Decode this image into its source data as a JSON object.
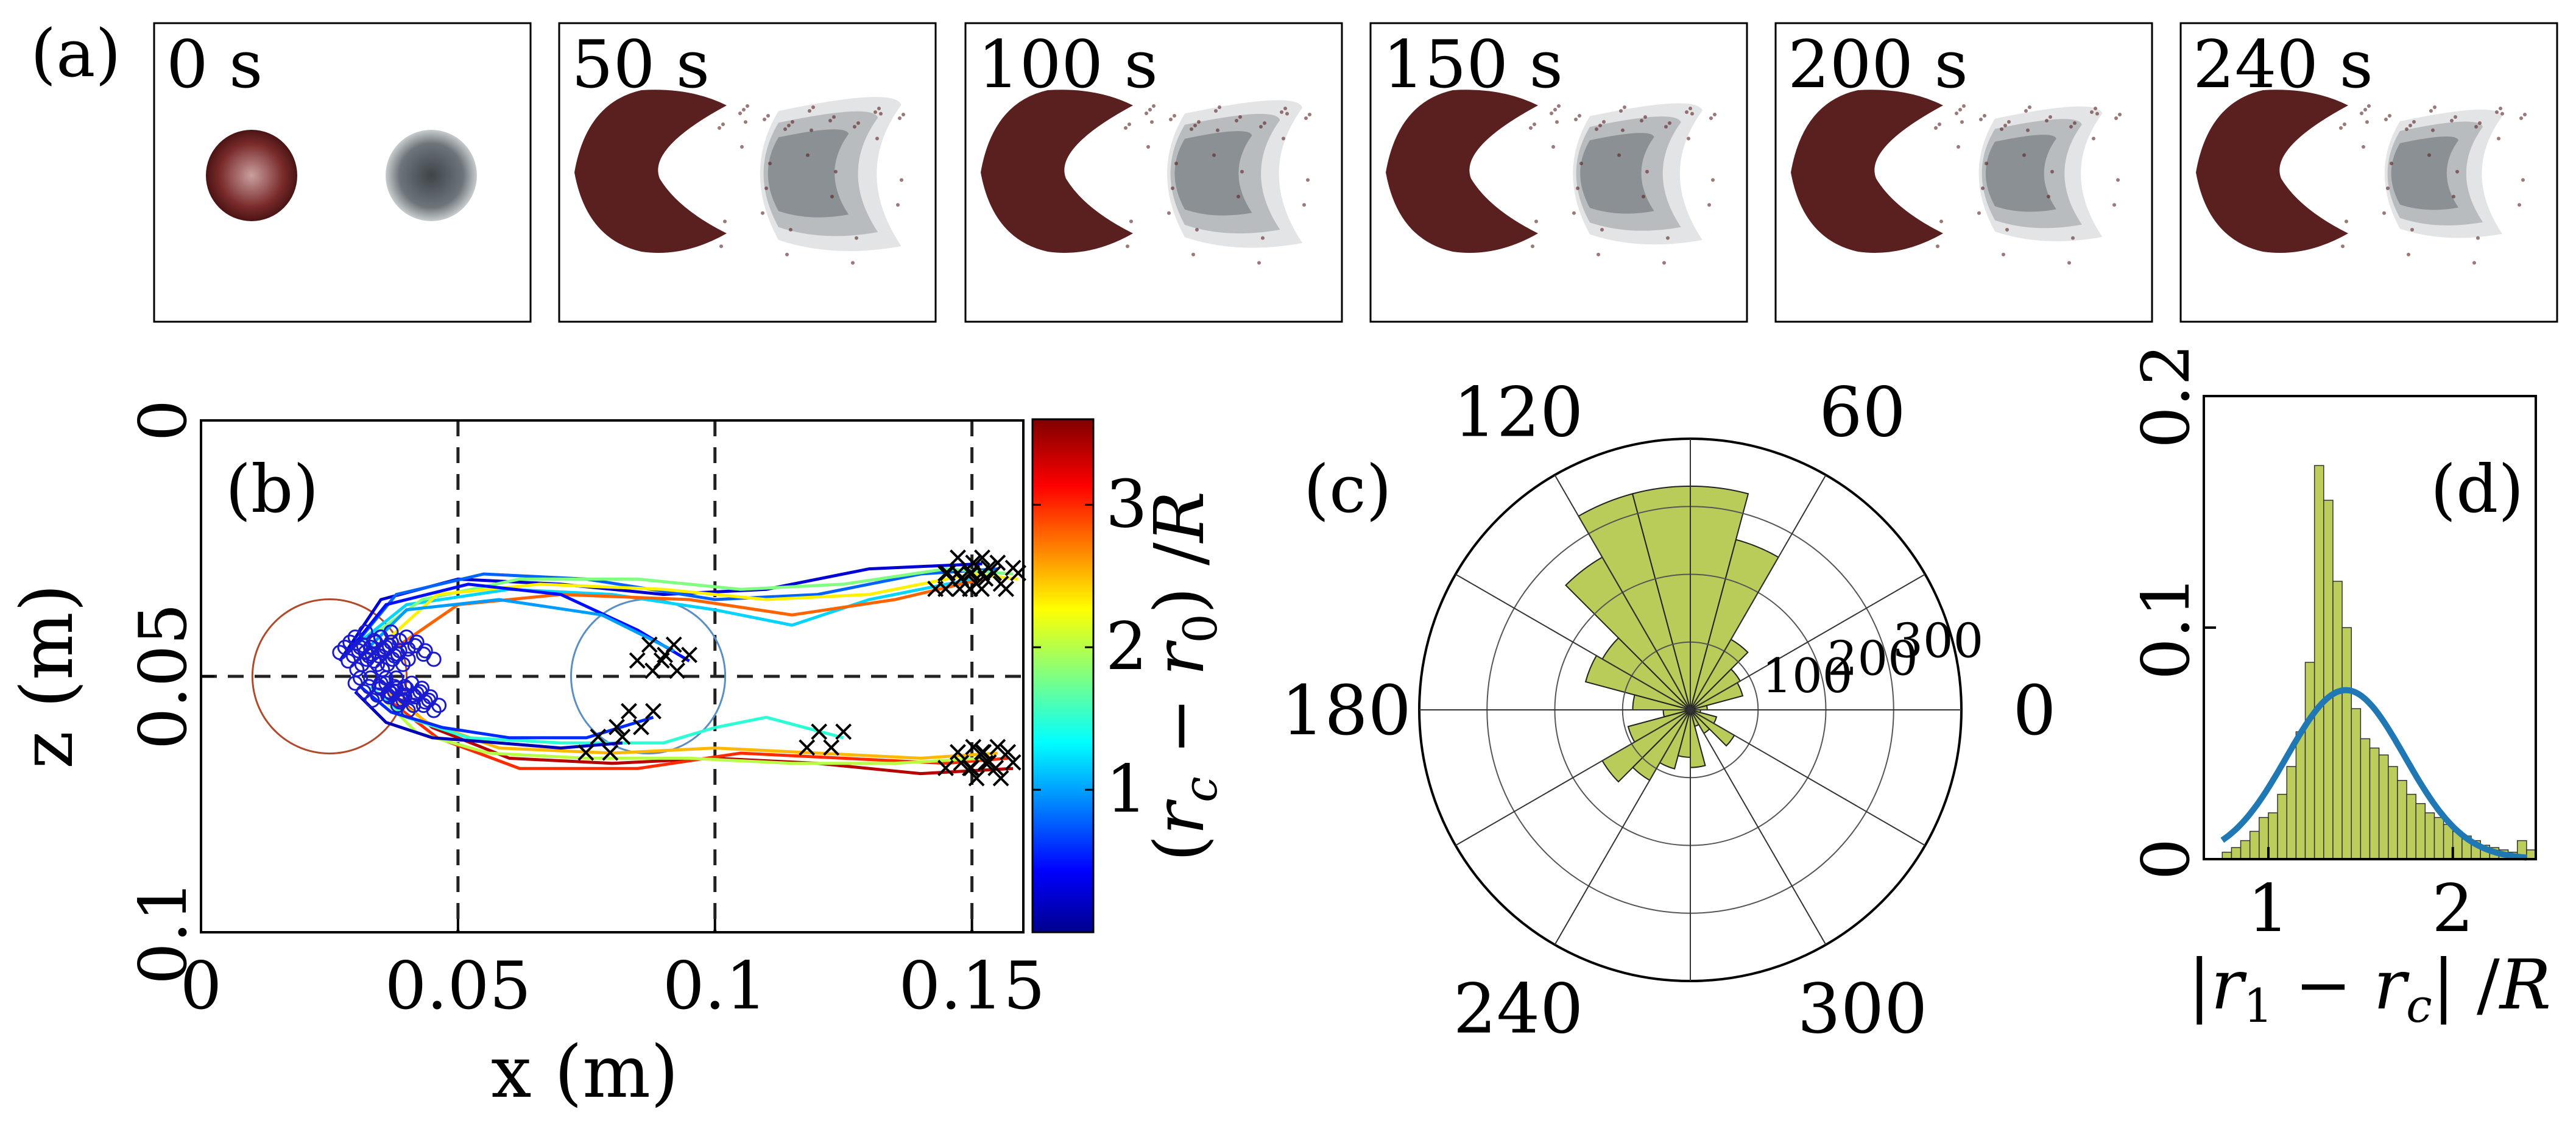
{
  "figure": {
    "panel_labels": {
      "a": "(a)",
      "b": "(b)",
      "c": "(c)",
      "d": "(d)"
    }
  },
  "panel_a": {
    "frames": [
      {
        "time": "0 s",
        "state": "initial"
      },
      {
        "time": "50 s",
        "state": "deformed"
      },
      {
        "time": "100 s",
        "state": "deformed"
      },
      {
        "time": "150 s",
        "state": "deformed"
      },
      {
        "time": "200 s",
        "state": "deformed"
      },
      {
        "time": "240 s",
        "state": "deformed"
      }
    ],
    "colors": {
      "front_blob": "#5a1f1f",
      "rear_blob": "#6d7277"
    }
  },
  "chart_data": [
    {
      "id": "b",
      "type": "line",
      "xlabel": "x (m)",
      "ylabel": "z (m)",
      "xlim": [
        0,
        0.16
      ],
      "ylim": [
        0,
        0.1
      ],
      "y_inverted": true,
      "xticks": [
        0,
        0.05,
        0.1,
        0.15
      ],
      "xtick_labels": [
        "0",
        "0.05",
        "0.1",
        "0.15"
      ],
      "yticks": [
        0,
        0.05,
        0.1
      ],
      "ytick_labels": [
        "0",
        "0.05",
        "0.1"
      ],
      "dashed_lines": {
        "x": [
          0.05,
          0.1,
          0.15
        ],
        "z": [
          0.05
        ]
      },
      "circles": [
        {
          "cx": 0.025,
          "cz": 0.05,
          "r": 0.015,
          "color": "#b04a2a"
        },
        {
          "cx": 0.087,
          "cz": 0.05,
          "r": 0.015,
          "color": "#5a8fc4"
        }
      ],
      "upper_trajectories": [
        {
          "color_value": 0.3,
          "points": [
            [
              0.027,
              0.047
            ],
            [
              0.035,
              0.035
            ],
            [
              0.05,
              0.031
            ],
            [
              0.07,
              0.032
            ],
            [
              0.09,
              0.034
            ],
            [
              0.11,
              0.033
            ],
            [
              0.13,
              0.029
            ],
            [
              0.152,
              0.028
            ]
          ]
        },
        {
          "color_value": 0.8,
          "points": [
            [
              0.029,
              0.045
            ],
            [
              0.038,
              0.034
            ],
            [
              0.055,
              0.03
            ],
            [
              0.075,
              0.031
            ],
            [
              0.1,
              0.035
            ],
            [
              0.12,
              0.034
            ],
            [
              0.14,
              0.03
            ],
            [
              0.155,
              0.029
            ]
          ]
        },
        {
          "color_value": 1.2,
          "points": [
            [
              0.03,
              0.044
            ],
            [
              0.04,
              0.036
            ],
            [
              0.06,
              0.033
            ],
            [
              0.08,
              0.034
            ],
            [
              0.1,
              0.037
            ],
            [
              0.115,
              0.04
            ],
            [
              0.13,
              0.035
            ],
            [
              0.15,
              0.031
            ]
          ]
        },
        {
          "color_value": 1.8,
          "points": [
            [
              0.032,
              0.043
            ],
            [
              0.043,
              0.035
            ],
            [
              0.062,
              0.031
            ],
            [
              0.085,
              0.031
            ],
            [
              0.105,
              0.033
            ],
            [
              0.125,
              0.032
            ],
            [
              0.145,
              0.029
            ],
            [
              0.158,
              0.03
            ]
          ]
        },
        {
          "color_value": 2.3,
          "points": [
            [
              0.035,
              0.044
            ],
            [
              0.046,
              0.034
            ],
            [
              0.066,
              0.032
            ],
            [
              0.09,
              0.033
            ],
            [
              0.11,
              0.035
            ],
            [
              0.13,
              0.034
            ],
            [
              0.15,
              0.03
            ],
            [
              0.159,
              0.031
            ]
          ]
        },
        {
          "color_value": 2.8,
          "points": [
            [
              0.037,
              0.045
            ],
            [
              0.05,
              0.036
            ],
            [
              0.07,
              0.034
            ],
            [
              0.095,
              0.035
            ],
            [
              0.115,
              0.038
            ],
            [
              0.135,
              0.035
            ],
            [
              0.152,
              0.031
            ]
          ]
        },
        {
          "color_value": 0.5,
          "points": [
            [
              0.028,
              0.046
            ],
            [
              0.036,
              0.036
            ],
            [
              0.052,
              0.032
            ],
            [
              0.07,
              0.034
            ],
            [
              0.085,
              0.041
            ],
            [
              0.095,
              0.047
            ]
          ]
        },
        {
          "color_value": 1.0,
          "points": [
            [
              0.031,
              0.046
            ],
            [
              0.04,
              0.037
            ],
            [
              0.058,
              0.035
            ],
            [
              0.078,
              0.038
            ],
            [
              0.092,
              0.045
            ]
          ]
        }
      ],
      "lower_trajectories": [
        {
          "color_value": 3.4,
          "points": [
            [
              0.038,
              0.054
            ],
            [
              0.045,
              0.06
            ],
            [
              0.06,
              0.066
            ],
            [
              0.08,
              0.067
            ],
            [
              0.1,
              0.066
            ],
            [
              0.12,
              0.067
            ],
            [
              0.14,
              0.069
            ],
            [
              0.158,
              0.068
            ]
          ]
        },
        {
          "color_value": 3.0,
          "points": [
            [
              0.037,
              0.055
            ],
            [
              0.046,
              0.062
            ],
            [
              0.062,
              0.068
            ],
            [
              0.085,
              0.068
            ],
            [
              0.105,
              0.065
            ],
            [
              0.125,
              0.066
            ],
            [
              0.145,
              0.067
            ],
            [
              0.157,
              0.066
            ]
          ]
        },
        {
          "color_value": 2.5,
          "points": [
            [
              0.036,
              0.053
            ],
            [
              0.044,
              0.059
            ],
            [
              0.058,
              0.064
            ],
            [
              0.08,
              0.065
            ],
            [
              0.1,
              0.064
            ],
            [
              0.12,
              0.065
            ],
            [
              0.14,
              0.066
            ],
            [
              0.155,
              0.065
            ]
          ]
        },
        {
          "color_value": 2.0,
          "points": [
            [
              0.035,
              0.054
            ],
            [
              0.042,
              0.061
            ],
            [
              0.056,
              0.065
            ],
            [
              0.075,
              0.066
            ],
            [
              0.095,
              0.066
            ],
            [
              0.115,
              0.067
            ],
            [
              0.135,
              0.067
            ],
            [
              0.152,
              0.066
            ]
          ]
        },
        {
          "color_value": 1.5,
          "points": [
            [
              0.033,
              0.052
            ],
            [
              0.04,
              0.058
            ],
            [
              0.052,
              0.062
            ],
            [
              0.07,
              0.063
            ],
            [
              0.09,
              0.063
            ],
            [
              0.1,
              0.06
            ],
            [
              0.11,
              0.058
            ],
            [
              0.125,
              0.062
            ]
          ]
        },
        {
          "color_value": 0.6,
          "points": [
            [
              0.031,
              0.052
            ],
            [
              0.037,
              0.057
            ],
            [
              0.047,
              0.06
            ],
            [
              0.06,
              0.062
            ],
            [
              0.075,
              0.062
            ],
            [
              0.088,
              0.058
            ]
          ]
        },
        {
          "color_value": 0.2,
          "points": [
            [
              0.03,
              0.053
            ],
            [
              0.036,
              0.059
            ],
            [
              0.045,
              0.062
            ],
            [
              0.058,
              0.063
            ],
            [
              0.07,
              0.064
            ],
            [
              0.082,
              0.063
            ]
          ]
        }
      ],
      "start_markers": "o",
      "end_markers": "x",
      "colorbar": {
        "label": "(r_c − r_0)/R",
        "range": [
          0,
          3.6
        ],
        "ticks": [
          1,
          2,
          3
        ],
        "tick_labels": [
          "1",
          "2",
          "3"
        ],
        "colormap": "jet"
      }
    },
    {
      "id": "c",
      "type": "polar-histogram",
      "bin_width_deg": 15,
      "r_max": 400,
      "radial_ticks": [
        100,
        200,
        300
      ],
      "radial_tick_labels": [
        "100",
        "200",
        "300"
      ],
      "angle_labels": [
        {
          "deg": 0,
          "text": "0"
        },
        {
          "deg": 60,
          "text": "60"
        },
        {
          "deg": 120,
          "text": "120"
        },
        {
          "deg": 180,
          "text": "180"
        },
        {
          "deg": 240,
          "text": "240"
        },
        {
          "deg": 300,
          "text": "300"
        }
      ],
      "bins_deg": [
        0,
        15,
        30,
        45,
        60,
        75,
        90,
        105,
        120,
        135,
        150,
        165,
        180,
        195,
        210,
        225,
        240,
        255,
        270,
        285,
        300,
        315,
        330,
        345
      ],
      "counts": [
        25,
        80,
        85,
        120,
        260,
        330,
        330,
        330,
        260,
        150,
        160,
        85,
        40,
        95,
        150,
        120,
        90,
        70,
        85,
        25,
        40,
        75,
        40,
        15
      ],
      "color": "#b9cc5a"
    },
    {
      "id": "d",
      "type": "bar",
      "xlabel": "|r_1 − r_c|/R",
      "ylabel": "",
      "xlim": [
        0.65,
        2.45
      ],
      "ylim": [
        0,
        0.2
      ],
      "xticks": [
        1,
        2
      ],
      "xtick_labels": [
        "1",
        "2"
      ],
      "yticks": [
        0,
        0.1,
        0.2
      ],
      "ytick_labels": [
        "0",
        "0.1",
        "0.2"
      ],
      "bin_width": 0.05,
      "bin_centers": [
        0.775,
        0.825,
        0.875,
        0.925,
        0.975,
        1.025,
        1.075,
        1.125,
        1.175,
        1.225,
        1.275,
        1.325,
        1.375,
        1.425,
        1.475,
        1.525,
        1.575,
        1.625,
        1.675,
        1.725,
        1.775,
        1.825,
        1.875,
        1.925,
        1.975,
        2.025,
        2.075,
        2.125,
        2.175,
        2.225,
        2.275,
        2.325,
        2.375,
        2.425
      ],
      "values": [
        0.003,
        0.005,
        0.008,
        0.012,
        0.018,
        0.02,
        0.028,
        0.04,
        0.055,
        0.085,
        0.17,
        0.155,
        0.12,
        0.1,
        0.065,
        0.052,
        0.048,
        0.045,
        0.04,
        0.034,
        0.028,
        0.024,
        0.02,
        0.018,
        0.015,
        0.012,
        0.01,
        0.008,
        0.006,
        0.005,
        0.004,
        0.003,
        0.008,
        0.004
      ],
      "bar_color": "#bccd5c",
      "fit": {
        "type": "gaussian",
        "mean": 1.42,
        "sd": 0.32,
        "peak": 0.073,
        "color": "#1f77b4"
      }
    }
  ]
}
